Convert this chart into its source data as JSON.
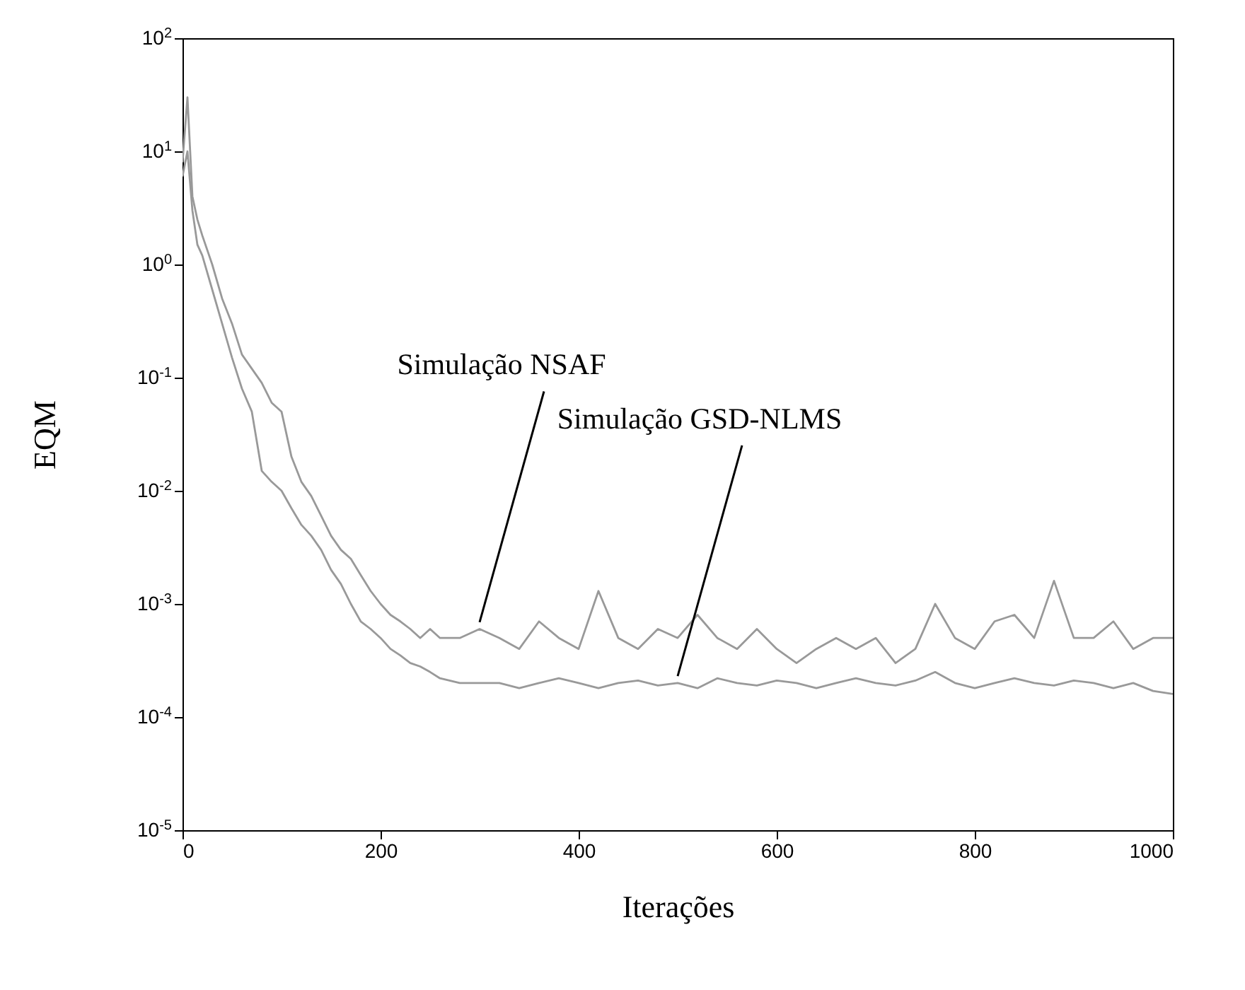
{
  "chart_data": {
    "type": "line",
    "xlabel": "Iterações",
    "ylabel": "EQM",
    "log": "y",
    "grid": false,
    "marker": "none",
    "line_style": "solid",
    "xlim": [
      0,
      1000
    ],
    "xticks": [
      0,
      200,
      400,
      600,
      800,
      1000
    ],
    "ylim": [
      1e-05,
      100
    ],
    "yticks": [
      {
        "value": 1e-05,
        "label": "10$^{-5}$"
      },
      {
        "value": 0.0001,
        "label": "10$^{-4}$"
      },
      {
        "value": 0.001,
        "label": "10$^{-3}$"
      },
      {
        "value": 0.01,
        "label": "10$^{-2}$"
      },
      {
        "value": 0.1,
        "label": "10$^{-1}$"
      },
      {
        "value": 1,
        "label": "10$^{0}$"
      },
      {
        "value": 10,
        "label": "10$^{1}$"
      },
      {
        "value": 100,
        "label": "10$^{2}$"
      }
    ],
    "x": [
      0,
      5,
      10,
      15,
      20,
      30,
      40,
      50,
      60,
      70,
      80,
      90,
      100,
      110,
      120,
      130,
      140,
      150,
      160,
      170,
      180,
      190,
      200,
      210,
      220,
      230,
      240,
      250,
      260,
      280,
      300,
      320,
      340,
      360,
      380,
      400,
      420,
      440,
      460,
      480,
      500,
      520,
      540,
      560,
      580,
      600,
      620,
      640,
      660,
      680,
      700,
      720,
      740,
      760,
      780,
      800,
      820,
      840,
      860,
      880,
      900,
      920,
      940,
      960,
      980,
      1000
    ],
    "series": [
      {
        "color": "#999999",
        "values": [
          8,
          30,
          4,
          2.5,
          1.8,
          1.0,
          0.5,
          0.3,
          0.16,
          0.12,
          0.09,
          0.06,
          0.05,
          0.02,
          0.012,
          0.009,
          0.006,
          0.004,
          0.003,
          0.0025,
          0.0018,
          0.0013,
          0.001,
          0.0008,
          0.0007,
          0.0006,
          0.0005,
          0.0006,
          0.0005,
          0.0005,
          0.0006,
          0.0005,
          0.0004,
          0.0007,
          0.0005,
          0.0004,
          0.0013,
          0.0005,
          0.0004,
          0.0006,
          0.0005,
          0.0008,
          0.0005,
          0.0004,
          0.0006,
          0.0004,
          0.0003,
          0.0004,
          0.0005,
          0.0004,
          0.0005,
          0.0003,
          0.0004,
          0.001,
          0.0005,
          0.0004,
          0.0007,
          0.0008,
          0.0005,
          0.0016,
          0.0005,
          0.0005,
          0.0007,
          0.0004,
          0.0005,
          0.0005
        ]
      },
      {
        "color": "#999999",
        "values": [
          6,
          10,
          3,
          1.5,
          1.2,
          0.6,
          0.3,
          0.15,
          0.08,
          0.05,
          0.015,
          0.012,
          0.01,
          0.007,
          0.005,
          0.004,
          0.003,
          0.002,
          0.0015,
          0.001,
          0.0007,
          0.0006,
          0.0005,
          0.0004,
          0.00035,
          0.0003,
          0.00028,
          0.00025,
          0.00022,
          0.0002,
          0.0002,
          0.0002,
          0.00018,
          0.0002,
          0.00022,
          0.0002,
          0.00018,
          0.0002,
          0.00021,
          0.00019,
          0.0002,
          0.00018,
          0.00022,
          0.0002,
          0.00019,
          0.00021,
          0.0002,
          0.00018,
          0.0002,
          0.00022,
          0.0002,
          0.00019,
          0.00021,
          0.00025,
          0.0002,
          0.00018,
          0.0002,
          0.00022,
          0.0002,
          0.00019,
          0.00021,
          0.0002,
          0.00018,
          0.0002,
          0.00017,
          0.00016
        ]
      }
    ],
    "annotations": [
      {
        "text": "Simulação NSAF",
        "x": 300,
        "y": 0.0006
      },
      {
        "text": "Simulação GSD-NLMS",
        "x": 500,
        "y": 0.0002
      }
    ]
  }
}
